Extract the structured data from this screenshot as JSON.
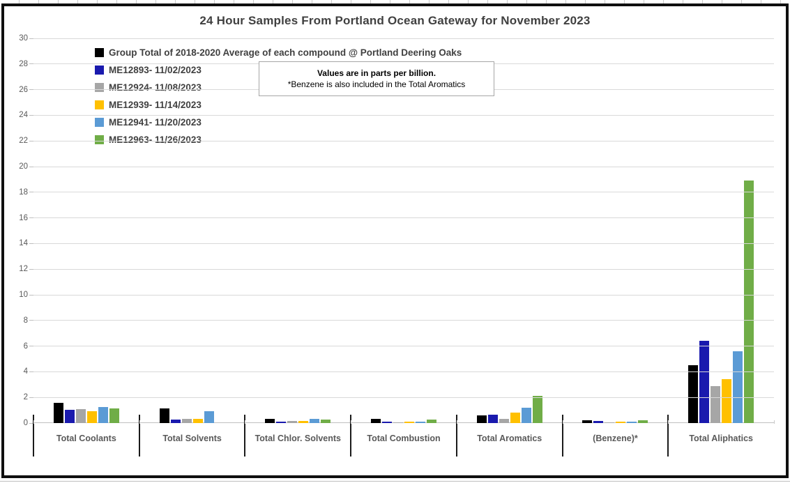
{
  "annotation": {
    "line1": "Values are in parts per billion.",
    "line2": "*Benzene is also included in the Total Aromatics"
  },
  "chart_data": {
    "type": "bar",
    "title": "24 Hour Samples From Portland Ocean Gateway for November 2023",
    "categories": [
      "Total Coolants",
      "Total Solvents",
      "Total Chlor. Solvents",
      "Total Combustion",
      "Total Aromatics",
      "(Benzene)*",
      "Total Aliphatics"
    ],
    "series": [
      {
        "name": "Group Total of 2018-2020 Average of each compound @ Portland Deering Oaks",
        "color": "#000000",
        "values": [
          1.55,
          1.15,
          0.35,
          0.3,
          0.6,
          0.2,
          4.5
        ]
      },
      {
        "name": "ME12893- 11/02/2023",
        "color": "#1a1aae",
        "values": [
          1.05,
          0.25,
          0.1,
          0.1,
          0.65,
          0.15,
          6.4
        ]
      },
      {
        "name": "ME12924- 11/08/2023",
        "color": "#a6a6a6",
        "values": [
          1.1,
          0.35,
          0.15,
          0.08,
          0.35,
          0.08,
          2.9
        ]
      },
      {
        "name": "ME12939- 11/14/2023",
        "color": "#ffc000",
        "values": [
          0.9,
          0.35,
          0.15,
          0.1,
          0.8,
          0.1,
          3.45
        ]
      },
      {
        "name": "ME12941- 11/20/2023",
        "color": "#5b9bd5",
        "values": [
          1.25,
          0.9,
          0.3,
          0.1,
          1.2,
          0.1,
          5.6
        ]
      },
      {
        "name": "ME12963- 11/26/2023",
        "color": "#70ad47",
        "values": [
          1.15,
          0,
          0.27,
          0.25,
          2.1,
          0.2,
          18.9
        ]
      }
    ],
    "ylabel": "",
    "xlabel": "",
    "ylim": [
      0,
      30
    ],
    "ytick_step": 2,
    "grid": true,
    "legend_position": "top-left-inside",
    "annotation": "Values are in parts per billion. *Benzene is also included in the Total Aromatics"
  }
}
